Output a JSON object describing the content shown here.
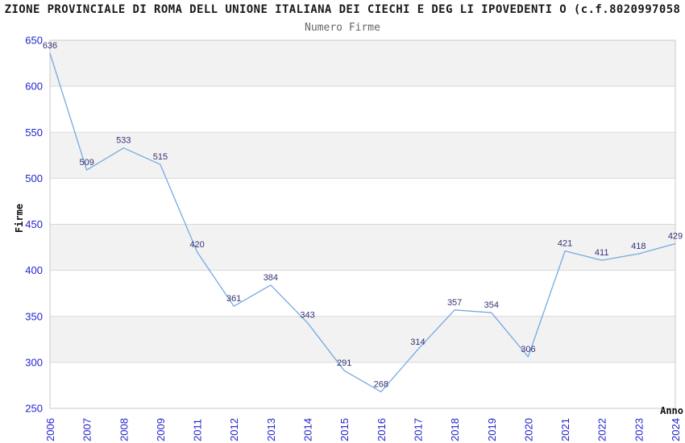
{
  "title": "ZIONE PROVINCIALE DI ROMA DELL UNIONE ITALIANA DEI CIECHI E DEG LI IPOVEDENTI O (c.f.8020997058",
  "subtitle": "Numero Firme",
  "chart_data": {
    "type": "line",
    "title": "Numero Firme",
    "xlabel": "Anno",
    "ylabel": "Firme",
    "categories": [
      "2006",
      "2007",
      "2008",
      "2009",
      "2011",
      "2012",
      "2013",
      "2014",
      "2015",
      "2016",
      "2017",
      "2018",
      "2019",
      "2020",
      "2021",
      "2022",
      "2023",
      "2024"
    ],
    "values": [
      636,
      509,
      533,
      515,
      420,
      361,
      384,
      343,
      291,
      268,
      314,
      357,
      354,
      306,
      421,
      411,
      418,
      429
    ],
    "ylim": [
      250,
      650
    ],
    "ytick_step": 50,
    "yticks": [
      250,
      300,
      350,
      400,
      450,
      500,
      550,
      600,
      650
    ],
    "grid": "horizontal-bands",
    "legend": "none",
    "data_labels": true
  },
  "colors": {
    "line": "#76aae1",
    "tick_label": "#2222cc",
    "data_label": "#333377",
    "band_fill": "#f2f2f2",
    "gridline": "#d9d9d9",
    "plot_border": "#c9c9c9",
    "title_text": "#1a1a1a",
    "subtitle_text": "#676767",
    "axis_title_text": "#111111",
    "background": "#ffffff"
  }
}
